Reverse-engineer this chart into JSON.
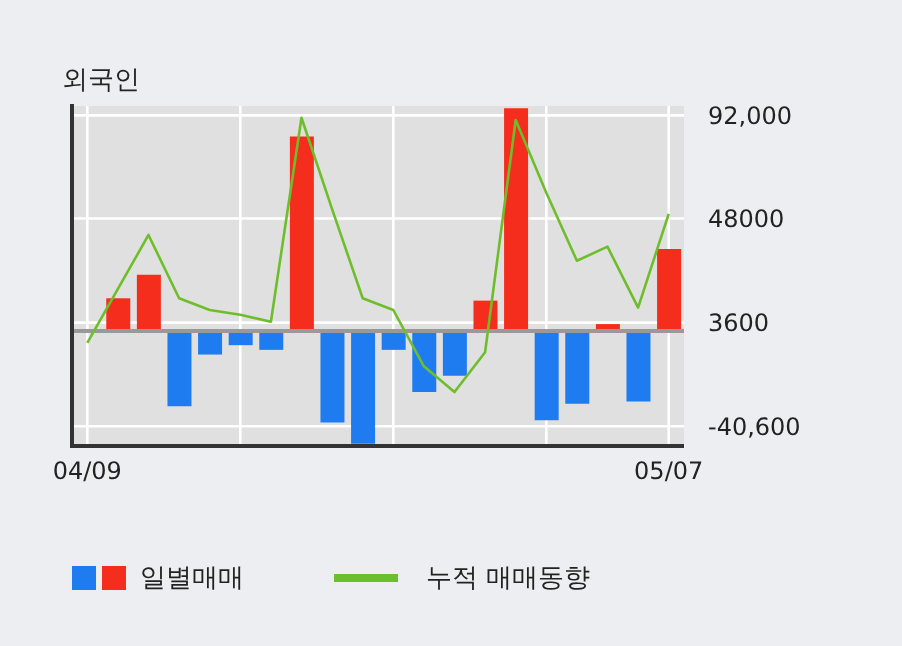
{
  "chart_data": {
    "type": "bar",
    "title": "외국인",
    "categories": [
      "04/09",
      null,
      null,
      null,
      null,
      null,
      null,
      null,
      null,
      null,
      null,
      null,
      null,
      null,
      null,
      null,
      null,
      null,
      null,
      "05/07"
    ],
    "series": [
      {
        "name": "일별매매",
        "colors": [
          null,
          "#f52d1d",
          "#f52d1d",
          "#1f7cf0",
          "#1f7cf0",
          "#1f7cf0",
          "#1f7cf0",
          "#f52d1d",
          "#1f7cf0",
          "#1f7cf0",
          "#1f7cf0",
          "#1f7cf0",
          "#1f7cf0",
          "#f52d1d",
          "#f52d1d",
          "#1f7cf0",
          "#1f7cf0",
          "#f52d1d",
          "#1f7cf0",
          "#f52d1d"
        ],
        "axis": "y2",
        "values": [
          null,
          14000,
          24000,
          -32000,
          -10000,
          -6000,
          -8000,
          83000,
          -39000,
          -48000,
          -8000,
          -26000,
          -19000,
          13000,
          95000,
          -38000,
          -31000,
          3000,
          -30000,
          35000
        ]
      },
      {
        "type": "line",
        "name": "누적 매매동향",
        "color": "#6ebe2c",
        "axis": "y2",
        "values": [
          -5000,
          18000,
          41000,
          14000,
          9000,
          7000,
          4000,
          91000,
          52000,
          14000,
          9000,
          -15000,
          -26000,
          -9000,
          90000,
          59000,
          30000,
          36000,
          10000,
          50000
        ]
      }
    ],
    "y2lim": [
      -49000,
      96000
    ],
    "y2ticks": [
      {
        "value": 92000,
        "label": "92,000"
      },
      48000,
      3600,
      {
        "value": -40600,
        "label": "-40,600"
      }
    ],
    "grid": true,
    "legend": "bottom",
    "marker": "none"
  }
}
